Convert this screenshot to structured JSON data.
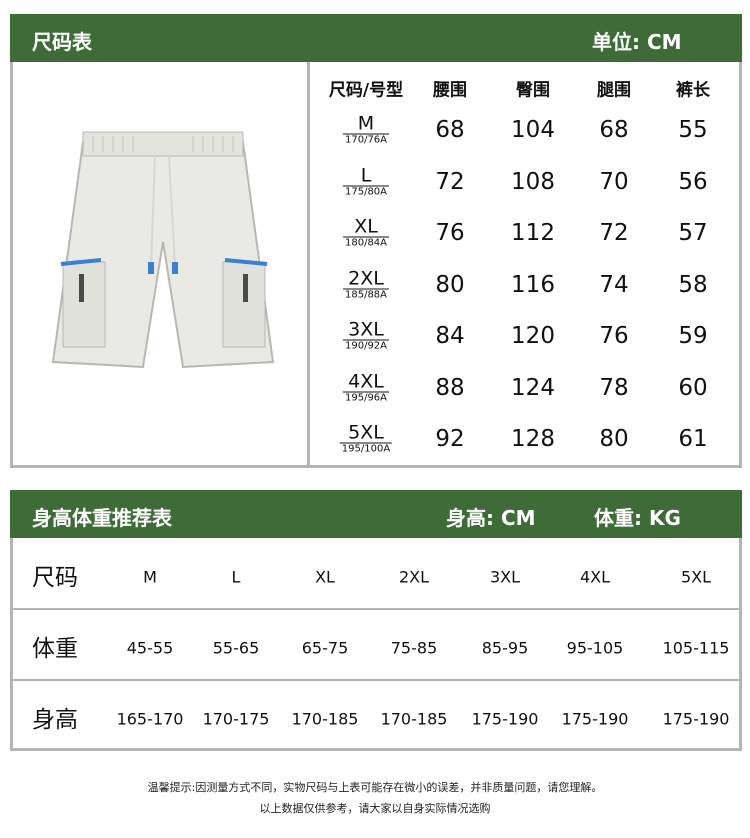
{
  "size_chart": {
    "title": "尺码表",
    "unit": "单位: CM",
    "headers": [
      "尺码/号型",
      "腰围",
      "臀围",
      "腿围",
      "裤长"
    ],
    "rows": [
      {
        "size": "M",
        "type": "170/76A",
        "values": [
          "68",
          "104",
          "68",
          "55"
        ]
      },
      {
        "size": "L",
        "type": "175/80A",
        "values": [
          "72",
          "108",
          "70",
          "56"
        ]
      },
      {
        "size": "XL",
        "type": "180/84A",
        "values": [
          "76",
          "112",
          "72",
          "57"
        ]
      },
      {
        "size": "2XL",
        "type": "185/88A",
        "values": [
          "80",
          "116",
          "74",
          "58"
        ]
      },
      {
        "size": "3XL",
        "type": "190/92A",
        "values": [
          "84",
          "120",
          "76",
          "59"
        ]
      },
      {
        "size": "4XL",
        "type": "195/96A",
        "values": [
          "88",
          "124",
          "78",
          "60"
        ]
      },
      {
        "size": "5XL",
        "type": "195/100A",
        "values": [
          "92",
          "128",
          "80",
          "61"
        ]
      }
    ]
  },
  "recommend": {
    "title": "身高体重推荐表",
    "height_unit": "身高: CM",
    "weight_unit": "体重: KG",
    "rows": [
      {
        "label": "尺码",
        "cells": [
          "M",
          "L",
          "XL",
          "2XL",
          "3XL",
          "4XL",
          "5XL"
        ]
      },
      {
        "label": "体重",
        "cells": [
          "45-55",
          "55-65",
          "65-75",
          "75-85",
          "85-95",
          "95-105",
          "105-115"
        ]
      },
      {
        "label": "身高",
        "cells": [
          "165-170",
          "170-175",
          "170-185",
          "170-185",
          "175-190",
          "175-190",
          "175-190"
        ]
      }
    ]
  },
  "footer": {
    "line1": "温馨提示:因测量方式不同，实物尺码与上表可能存在微小的误差，并非质量问题，请您理解。",
    "line2": "以上数据仅供参考，请大家以自身实际情况选购"
  },
  "colors": {
    "header": "#3e6b37",
    "border": "#b4b4b4",
    "zipper": "#3d7fd0"
  }
}
